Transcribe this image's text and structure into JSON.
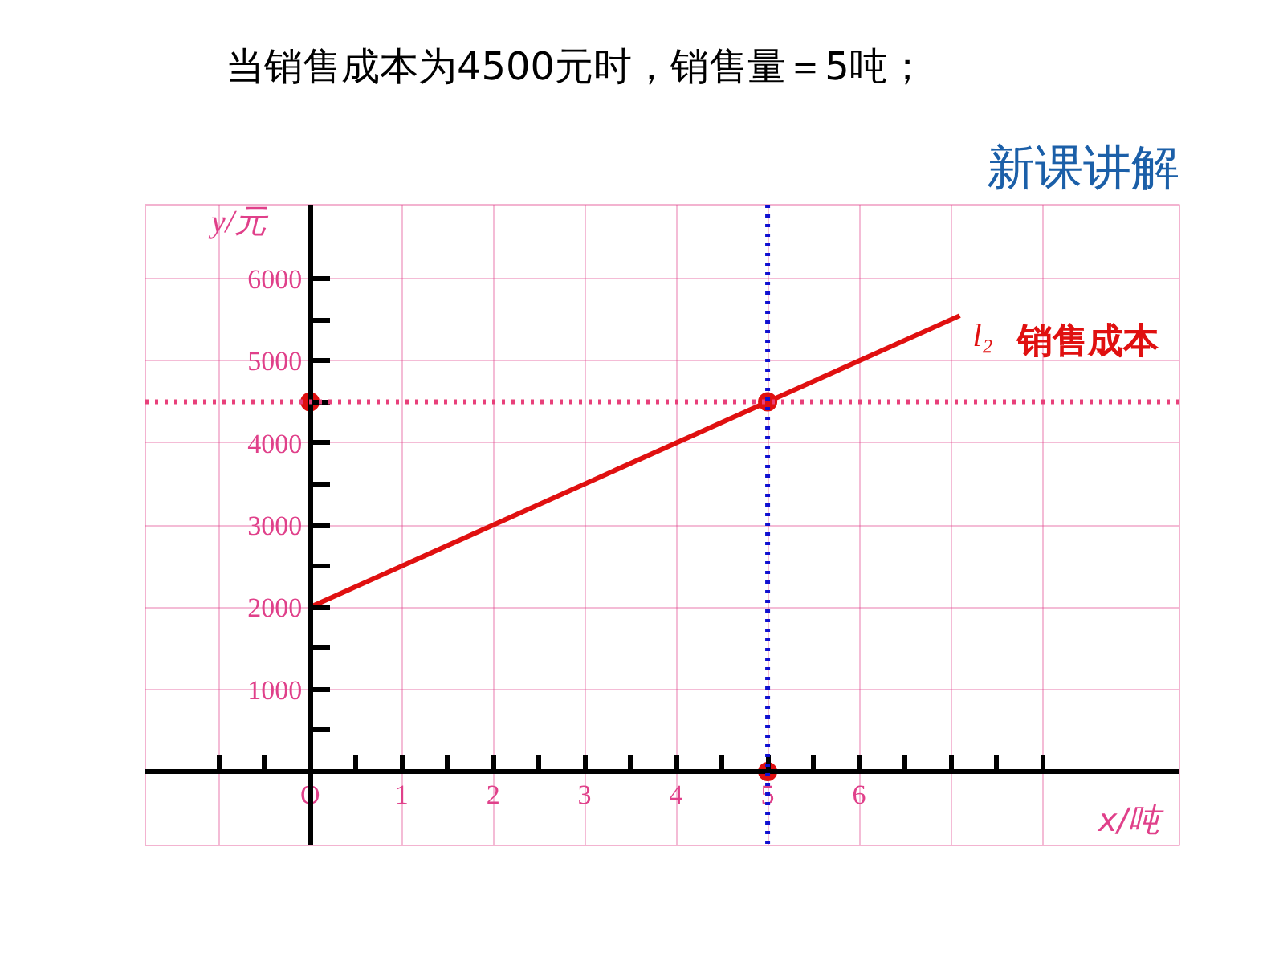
{
  "chart_data": {
    "type": "line",
    "title": "当销售成本为4500元时，销售量＝5吨；",
    "subtitle": "新课讲解",
    "xlabel": "x/吨",
    "ylabel": "y/元",
    "xlim": [
      -1.8,
      9.5
    ],
    "ylim": [
      -900,
      6900
    ],
    "xticks": [
      {
        "value": -1,
        "label": null
      },
      {
        "value": -0.5,
        "label": null
      },
      {
        "value": 0,
        "label": "O"
      },
      {
        "value": 0.5,
        "label": null
      },
      1,
      {
        "value": 1.5,
        "label": null
      },
      2,
      {
        "value": 2.5,
        "label": null
      },
      3,
      {
        "value": 3.5,
        "label": null
      },
      4,
      {
        "value": 4.5,
        "label": null
      },
      5,
      {
        "value": 5.5,
        "label": null
      },
      6,
      {
        "value": 6.5,
        "label": null
      },
      {
        "value": 7,
        "label": null
      },
      {
        "value": 7.5,
        "label": null
      },
      {
        "value": 8,
        "label": null
      }
    ],
    "yticks": [
      {
        "value": 500,
        "label": null
      },
      1000,
      {
        "value": 1500,
        "label": null
      },
      2000,
      {
        "value": 2500,
        "label": null
      },
      3000,
      {
        "value": 3500,
        "label": null
      },
      4000,
      {
        "value": 4500,
        "label": null
      },
      5000,
      {
        "value": 5500,
        "label": null
      },
      6000
    ],
    "series": [
      {
        "name": "l₂",
        "color": "#e01010",
        "x": [
          0,
          7.1
        ],
        "values": [
          2000,
          5550
        ]
      },
      {
        "type": "scatter",
        "marker": "circle",
        "color": "#e01010",
        "x": [
          0,
          5,
          5
        ],
        "values": [
          4500,
          4500,
          0
        ]
      }
    ],
    "ref_lines": [
      {
        "axis": "y",
        "value": 4500,
        "color": "#e8407a",
        "line_style": "dotted"
      },
      {
        "axis": "x",
        "value": 5,
        "color": "#1010d0",
        "line_style": "dotted"
      }
    ],
    "annotations": [
      "销售成本"
    ],
    "grid": true,
    "line_style": "solid"
  }
}
